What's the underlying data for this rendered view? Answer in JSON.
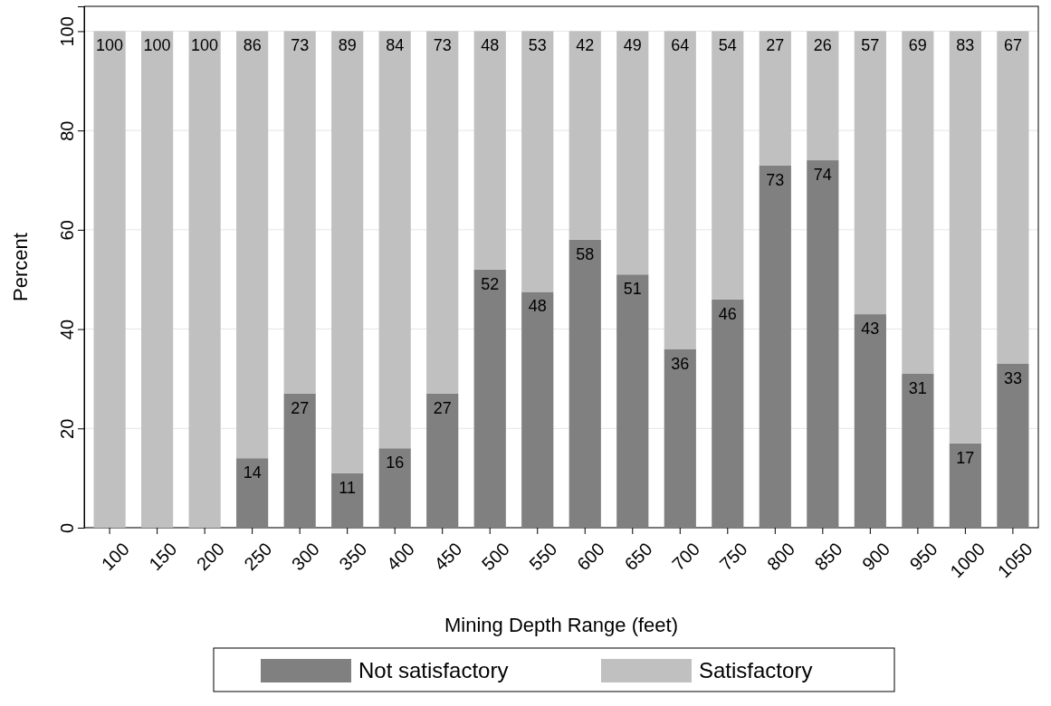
{
  "chart_data": {
    "type": "bar",
    "stacked": true,
    "xlabel": "Mining Depth Range (feet)",
    "ylabel": "Percent",
    "categories": [
      "100",
      "150",
      "200",
      "250",
      "300",
      "350",
      "400",
      "450",
      "500",
      "550",
      "600",
      "650",
      "700",
      "750",
      "800",
      "850",
      "900",
      "950",
      "1000",
      "1050"
    ],
    "series": [
      {
        "name": "Not satisfactory",
        "color": "#808080",
        "values": [
          0,
          0,
          0,
          14,
          27,
          11,
          16,
          27,
          52,
          47.5,
          58,
          51,
          36,
          46,
          73,
          74,
          43,
          31,
          17,
          33
        ],
        "value_labels": [
          null,
          null,
          null,
          "14",
          "27",
          "11",
          "16",
          "27",
          "52",
          "48",
          "58",
          "51",
          "36",
          "46",
          "73",
          "74",
          "43",
          "31",
          "17",
          "33"
        ]
      },
      {
        "name": "Satisfactory",
        "color": "#c0c0c0",
        "values": [
          100,
          100,
          100,
          86,
          73,
          89,
          84,
          73,
          48,
          52.5,
          42,
          49,
          64,
          54,
          27,
          26,
          57,
          69,
          83,
          67
        ],
        "value_labels": [
          "100",
          "100",
          "100",
          "86",
          "73",
          "89",
          "84",
          "73",
          "48",
          "53",
          "42",
          "49",
          "64",
          "54",
          "27",
          "26",
          "57",
          "69",
          "83",
          "67"
        ]
      }
    ],
    "ylim": [
      0,
      105
    ],
    "yticks": [
      0,
      20,
      40,
      60,
      80,
      100
    ],
    "grid": "y",
    "legend": "bottom"
  }
}
